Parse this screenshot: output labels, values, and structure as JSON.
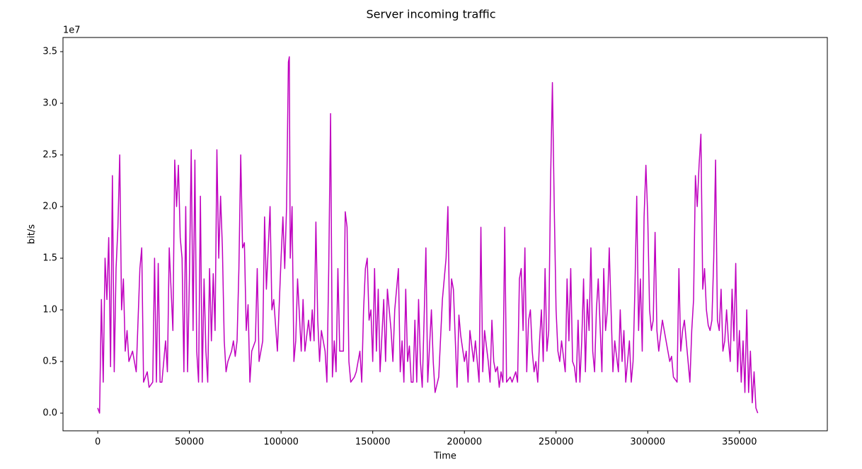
{
  "chart_data": {
    "type": "line",
    "title": "Server incoming traffic",
    "x_label": "Time",
    "y_label": "bit/s",
    "y_offset_label": "1e7",
    "xlim": [
      -18950,
      397950
    ],
    "ylim": [
      -1710000,
      36370000
    ],
    "xticks": [
      0,
      50000,
      100000,
      150000,
      200000,
      250000,
      300000,
      350000
    ],
    "yticks": [
      {
        "value": 0,
        "label": "0.0"
      },
      {
        "value": 5000000,
        "label": "0.5"
      },
      {
        "value": 10000000,
        "label": "1.0"
      },
      {
        "value": 15000000,
        "label": "1.5"
      },
      {
        "value": 20000000,
        "label": "2.0"
      },
      {
        "value": 25000000,
        "label": "2.5"
      },
      {
        "value": 30000000,
        "label": "3.0"
      },
      {
        "value": 35000000,
        "label": "3.5"
      }
    ],
    "x": [
      0,
      1000,
      2000,
      3000,
      4000,
      5000,
      6000,
      7000,
      8000,
      9000,
      10000,
      11000,
      12000,
      13000,
      14000,
      15000,
      16000,
      17000,
      19000,
      21000,
      23000,
      24000,
      25000,
      27000,
      28000,
      30000,
      31000,
      32000,
      33000,
      34000,
      35000,
      37000,
      38000,
      39000,
      41000,
      42000,
      43000,
      44000,
      45000,
      46000,
      47000,
      48000,
      49000,
      50000,
      51000,
      52000,
      53000,
      54000,
      55000,
      56000,
      57000,
      58000,
      59000,
      60000,
      61000,
      62000,
      63000,
      64000,
      65000,
      66000,
      67000,
      68000,
      69000,
      70000,
      71000,
      73000,
      74000,
      75000,
      76000,
      77000,
      78000,
      79000,
      80000,
      81000,
      82000,
      83000,
      84000,
      86000,
      87000,
      88000,
      90000,
      91000,
      92000,
      93000,
      94000,
      95000,
      96000,
      98000,
      100000,
      101000,
      102000,
      103000,
      104000,
      104500,
      105000,
      106000,
      107000,
      108000,
      109000,
      111000,
      112000,
      113000,
      115000,
      116000,
      117000,
      118000,
      119000,
      120000,
      121000,
      122000,
      124000,
      125000,
      126000,
      127000,
      128000,
      129000,
      130000,
      131000,
      132000,
      134000,
      135000,
      136000,
      137000,
      138000,
      140000,
      141000,
      143000,
      144000,
      145000,
      146000,
      147000,
      148000,
      149000,
      150000,
      151000,
      152000,
      153000,
      154000,
      156000,
      157000,
      158000,
      160000,
      161000,
      162000,
      164000,
      165000,
      166000,
      167000,
      168000,
      169000,
      170000,
      171000,
      172000,
      173000,
      174000,
      175000,
      176000,
      177000,
      178000,
      179000,
      180000,
      182000,
      183000,
      184000,
      186000,
      188000,
      190000,
      191000,
      192000,
      193000,
      194000,
      196000,
      197000,
      198000,
      200000,
      201000,
      202000,
      203000,
      205000,
      206000,
      208000,
      209000,
      210000,
      211000,
      213000,
      214000,
      215000,
      216000,
      217000,
      218000,
      219000,
      220000,
      221000,
      222000,
      223000,
      225000,
      226000,
      228000,
      229000,
      230000,
      231000,
      232000,
      233000,
      234000,
      235000,
      236000,
      237000,
      238000,
      239000,
      240000,
      241000,
      242000,
      243000,
      244000,
      245000,
      246000,
      247000,
      248000,
      249000,
      250000,
      251000,
      252000,
      253000,
      255000,
      256000,
      257000,
      258000,
      259000,
      260000,
      261000,
      262000,
      263000,
      264000,
      265000,
      266000,
      267000,
      268000,
      269000,
      270000,
      271000,
      272000,
      273000,
      275000,
      276000,
      277000,
      278000,
      279000,
      280000,
      281000,
      282000,
      284000,
      285000,
      286000,
      287000,
      288000,
      290000,
      291000,
      292000,
      293000,
      294000,
      295000,
      296000,
      297000,
      298000,
      299000,
      300000,
      301000,
      302000,
      303000,
      304000,
      305000,
      306000,
      308000,
      310000,
      312000,
      313000,
      314000,
      316000,
      317000,
      318000,
      319000,
      320000,
      322000,
      323000,
      324000,
      325000,
      326000,
      327000,
      328000,
      329000,
      330000,
      331000,
      332000,
      333000,
      334000,
      335000,
      336000,
      337000,
      338000,
      339000,
      340000,
      341000,
      342000,
      343000,
      344000,
      345000,
      346000,
      347000,
      348000,
      349000,
      350000,
      351000,
      352000,
      353000,
      354000,
      355000,
      356000,
      357000,
      358000,
      359000,
      360000
    ],
    "series": [
      {
        "name": "bit/s",
        "color": "#bf00bf",
        "values": [
          500000,
          0,
          11000000,
          3000000,
          15000000,
          11000000,
          17000000,
          4500000,
          23000000,
          4000000,
          14000000,
          18000000,
          25000000,
          10000000,
          13000000,
          6000000,
          8000000,
          5000000,
          6000000,
          4000000,
          14000000,
          16000000,
          3000000,
          4000000,
          2500000,
          3000000,
          15000000,
          3000000,
          14500000,
          3000000,
          3000000,
          7000000,
          4000000,
          16000000,
          8000000,
          24500000,
          20000000,
          24000000,
          17000000,
          15000000,
          4000000,
          20000000,
          4000000,
          13000000,
          25500000,
          8000000,
          24500000,
          6000000,
          3000000,
          21000000,
          3000000,
          13000000,
          6000000,
          3000000,
          14000000,
          7000000,
          13500000,
          8000000,
          25500000,
          15000000,
          21000000,
          16000000,
          7000000,
          4000000,
          5000000,
          6000000,
          7000000,
          5500000,
          7000000,
          14000000,
          25000000,
          16000000,
          16500000,
          8000000,
          10500000,
          3000000,
          6000000,
          7000000,
          14000000,
          5000000,
          7000000,
          19000000,
          12000000,
          16000000,
          20000000,
          10000000,
          11000000,
          6000000,
          15000000,
          19000000,
          14000000,
          20000000,
          34000000,
          34500000,
          15000000,
          20000000,
          5000000,
          7000000,
          13000000,
          6000000,
          11000000,
          6000000,
          9000000,
          7000000,
          10000000,
          7000000,
          18500000,
          9000000,
          5000000,
          8000000,
          6000000,
          3000000,
          14000000,
          29000000,
          3500000,
          7000000,
          4000000,
          14000000,
          6000000,
          6000000,
          19500000,
          18000000,
          5000000,
          3000000,
          3500000,
          4000000,
          6000000,
          3000000,
          10000000,
          14000000,
          15000000,
          9000000,
          10000000,
          5000000,
          14000000,
          6000000,
          12000000,
          4000000,
          11000000,
          5000000,
          12000000,
          8000000,
          5000000,
          10000000,
          14000000,
          4000000,
          7000000,
          3000000,
          12000000,
          5000000,
          6500000,
          3000000,
          3000000,
          9000000,
          3000000,
          11000000,
          5000000,
          2500000,
          9000000,
          16000000,
          3000000,
          10000000,
          5000000,
          2000000,
          3500000,
          11000000,
          15000000,
          20000000,
          8000000,
          13000000,
          12000000,
          2500000,
          9500000,
          7500000,
          5000000,
          6000000,
          3000000,
          8000000,
          5000000,
          7000000,
          3000000,
          18000000,
          4000000,
          8000000,
          5000000,
          3000000,
          9000000,
          5000000,
          4000000,
          4500000,
          2500000,
          4000000,
          3000000,
          18000000,
          3000000,
          3500000,
          3000000,
          4000000,
          3000000,
          13000000,
          14000000,
          8000000,
          16000000,
          4000000,
          9000000,
          10000000,
          6000000,
          4000000,
          5000000,
          3000000,
          7000000,
          10000000,
          5000000,
          14000000,
          6000000,
          8000000,
          22500000,
          32000000,
          20000000,
          10000000,
          6000000,
          5000000,
          7000000,
          4000000,
          13000000,
          7000000,
          14000000,
          5000000,
          4500000,
          3000000,
          9000000,
          3000000,
          7000000,
          13000000,
          4000000,
          11000000,
          8000000,
          16000000,
          6000000,
          4000000,
          10000000,
          13000000,
          4000000,
          14000000,
          8000000,
          10000000,
          16000000,
          10000000,
          4000000,
          7000000,
          4000000,
          10000000,
          5000000,
          8000000,
          3000000,
          7000000,
          3000000,
          5000000,
          12000000,
          21000000,
          8000000,
          13000000,
          6000000,
          19000000,
          24000000,
          19000000,
          10000000,
          8000000,
          9000000,
          17500000,
          8000000,
          6000000,
          9000000,
          7000000,
          5000000,
          5500000,
          3500000,
          3000000,
          14000000,
          6000000,
          8000000,
          9000000,
          5000000,
          3000000,
          8000000,
          11000000,
          23000000,
          20000000,
          24000000,
          27000000,
          12000000,
          14000000,
          10000000,
          8500000,
          8000000,
          9000000,
          15000000,
          24500000,
          9000000,
          8000000,
          12000000,
          6000000,
          7000000,
          10000000,
          7000000,
          5000000,
          12000000,
          7000000,
          14500000,
          4000000,
          8000000,
          3000000,
          7000000,
          2000000,
          10000000,
          2000000,
          6000000,
          1000000,
          4000000,
          500000,
          0
        ]
      }
    ]
  }
}
